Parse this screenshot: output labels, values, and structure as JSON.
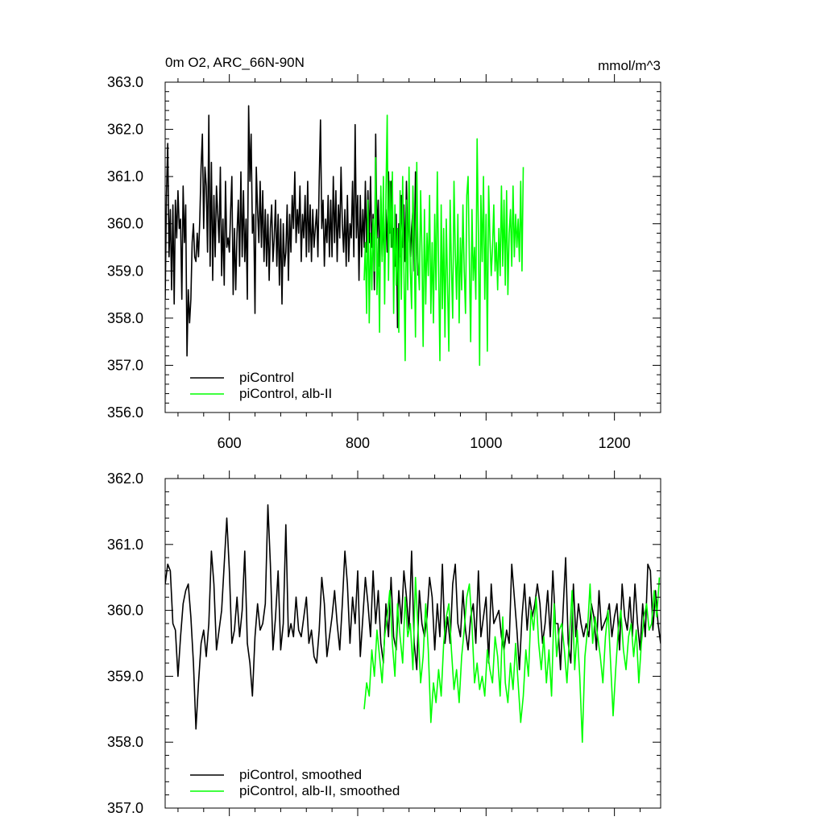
{
  "chart_data": [
    {
      "type": "line",
      "title": "0m O2, ARC_66N-90N",
      "units": "mmol/m^3",
      "xlabel": "",
      "ylabel": "",
      "xlim": [
        500,
        1272
      ],
      "ylim": [
        356.0,
        363.0
      ],
      "x_ticks": [
        600,
        800,
        1000,
        1200
      ],
      "x_tick_labels": [
        "600",
        "800",
        "1000",
        "1200"
      ],
      "y_ticks": [
        356.0,
        357.0,
        358.0,
        359.0,
        360.0,
        361.0,
        362.0,
        363.0
      ],
      "y_tick_labels": [
        "356.0",
        "357.0",
        "358.0",
        "359.0",
        "360.0",
        "361.0",
        "362.0",
        "363.0"
      ],
      "grid": false,
      "legend_position": "bottom-left",
      "series": [
        {
          "name": "piControl",
          "color": "#000000",
          "x_start": 500,
          "x_step": 2,
          "values": [
            358.4,
            360.6,
            361.7,
            359.3,
            360.3,
            358.6,
            360.4,
            358.3,
            360.5,
            359.7,
            360.7,
            359.9,
            360.1,
            358.4,
            360.8,
            359.6,
            360.4,
            357.2,
            358.6,
            357.9,
            358.4,
            359.6,
            360.0,
            359.3,
            359.2,
            359.8,
            359.3,
            360.1,
            361.2,
            361.9,
            359.9,
            361.2,
            360.8,
            359.4,
            362.3,
            359.1,
            361.3,
            358.8,
            360.6,
            359.3,
            360.8,
            360.2,
            359.6,
            361.2,
            358.9,
            360.1,
            358.7,
            360.9,
            359.5,
            359.7,
            359.4,
            360.3,
            361.0,
            358.5,
            359.9,
            358.6,
            359.8,
            360.5,
            359.1,
            361.1,
            359.3,
            360.7,
            359.2,
            360.1,
            358.4,
            362.5,
            360.9,
            361.9,
            359.8,
            360.2,
            358.1,
            361.2,
            360.3,
            359.6,
            360.9,
            359.5,
            360.7,
            359.2,
            360.3,
            359.1,
            360.2,
            358.8,
            359.9,
            360.4,
            359.2,
            359.7,
            360.5,
            359.1,
            360.2,
            358.7,
            360.1,
            358.3,
            360.0,
            359.1,
            359.4,
            360.4,
            358.8,
            360.2,
            359.4,
            360.6,
            359.9,
            361.1,
            359.6,
            360.3,
            359.8,
            360.8,
            359.2,
            360.2,
            359.7,
            360.6,
            359.3,
            360.9,
            359.4,
            360.4,
            359.2,
            360.3,
            359.5,
            359.9,
            360.3,
            359.3,
            360.9,
            362.2,
            359.9,
            360.5,
            359.1,
            360.1,
            359.6,
            360.6,
            359.3,
            360.5,
            359.3,
            361.0,
            359.6,
            360.7,
            359.2,
            360.4,
            359.7,
            361.2,
            360.0,
            359.4,
            360.3,
            359.1,
            360.6,
            359.2,
            360.0,
            359.7,
            360.9,
            359.3,
            362.1,
            359.7,
            360.6,
            358.8,
            360.6,
            359.3,
            360.3,
            359.5,
            360.9,
            359.4,
            360.7,
            359.6,
            361.0,
            359.5,
            360.2,
            358.6,
            361.9,
            359.7,
            360.5,
            359.1,
            360.6,
            359.3,
            360.2,
            358.9,
            360.3,
            359.4,
            361.1,
            359.8,
            360.9,
            359.5,
            359.9,
            359.1,
            360.2,
            357.8,
            360.0,
            359.3,
            360.6,
            359.5,
            360.4,
            359.2,
            360.9,
            359.6,
            360.2,
            359.3,
            359.9,
            360.3,
            359.0,
            361.1,
            360.2,
            358.9
          ]
        },
        {
          "name": "piControl, alb-II",
          "color": "#00ff00",
          "x_start": 810,
          "x_step": 2,
          "values": [
            358.8,
            359.6,
            358.1,
            360.5,
            357.9,
            359.8,
            358.6,
            360.1,
            359.0,
            361.4,
            358.5,
            359.7,
            357.7,
            360.8,
            359.2,
            361.0,
            358.3,
            360.6,
            362.3,
            358.8,
            360.9,
            359.5,
            361.1,
            358.1,
            360.4,
            358.7,
            359.9,
            357.7,
            360.7,
            358.4,
            361.0,
            359.1,
            357.1,
            360.5,
            358.6,
            361.2,
            359.0,
            358.2,
            360.8,
            359.6,
            357.6,
            361.3,
            359.2,
            358.6,
            360.7,
            359.4,
            357.4,
            360.3,
            358.3,
            359.8,
            358.9,
            360.6,
            358.1,
            359.6,
            357.9,
            360.2,
            358.6,
            361.1,
            359.1,
            357.1,
            360.4,
            358.2,
            359.9,
            357.6,
            360.1,
            358.7,
            357.3,
            360.5,
            359.1,
            358.0,
            360.9,
            359.4,
            358.4,
            360.2,
            357.9,
            359.7,
            358.6,
            360.4,
            359.0,
            358.1,
            360.6,
            361.0,
            359.2,
            357.5,
            360.3,
            358.8,
            359.5,
            358.4,
            361.8,
            359.8,
            357.0,
            360.6,
            359.2,
            361.0,
            358.4,
            360.2,
            357.3,
            360.8,
            359.7,
            358.9,
            359.5,
            360.4,
            359.0,
            359.6,
            358.6,
            359.9,
            358.9,
            360.8,
            359.1,
            360.5,
            358.7,
            360.7,
            358.5,
            359.8,
            360.3,
            359.1,
            360.8,
            359.3,
            360.2,
            359.5,
            360.1,
            359.2,
            360.9,
            359.0,
            361.2
          ]
        }
      ],
      "legend": [
        {
          "label": "piControl",
          "color": "#000000"
        },
        {
          "label": "piControl, alb-II",
          "color": "#00ff00"
        }
      ]
    },
    {
      "type": "line",
      "title": "",
      "xlabel": "",
      "ylabel": "",
      "xlim": [
        500,
        1272
      ],
      "ylim": [
        357.0,
        362.0
      ],
      "x_ticks": [
        600,
        800,
        1000,
        1200
      ],
      "x_tick_labels": [],
      "y_ticks": [
        357.0,
        358.0,
        359.0,
        360.0,
        361.0,
        362.0
      ],
      "y_tick_labels": [
        "357.0",
        "358.0",
        "359.0",
        "360.0",
        "361.0",
        "362.0"
      ],
      "grid": false,
      "legend_position": "bottom-left",
      "series": [
        {
          "name": "piControl, smoothed",
          "color": "#000000",
          "x_start": 500,
          "x_step": 4,
          "values": [
            360.4,
            360.7,
            360.6,
            359.8,
            359.7,
            359.0,
            359.6,
            360.1,
            360.3,
            360.4,
            359.9,
            359.2,
            358.2,
            358.9,
            359.5,
            359.7,
            359.3,
            359.8,
            360.9,
            360.4,
            359.4,
            359.7,
            360.0,
            360.7,
            361.4,
            360.6,
            359.5,
            359.7,
            360.2,
            359.6,
            360.0,
            360.9,
            359.5,
            359.2,
            358.7,
            359.6,
            360.1,
            359.7,
            359.8,
            360.1,
            361.6,
            360.7,
            359.4,
            359.9,
            360.6,
            359.4,
            359.8,
            361.3,
            359.6,
            359.8,
            359.6,
            360.2,
            359.7,
            359.6,
            359.9,
            360.2,
            359.5,
            359.7,
            359.3,
            359.2,
            359.7,
            360.5,
            360.1,
            359.3,
            359.6,
            359.9,
            360.3,
            359.8,
            359.4,
            360.1,
            360.9,
            360.4,
            359.5,
            360.2,
            359.8,
            360.6,
            359.3,
            359.9,
            360.5,
            360.1,
            359.6,
            360.6,
            359.8,
            360.3,
            359.5,
            359.2,
            360.1,
            359.6,
            360.5,
            359.6,
            359.4,
            360.3,
            359.8,
            360.6,
            360.2,
            359.7,
            360.9,
            359.5,
            359.1,
            360.3,
            359.8,
            359.6,
            359.9,
            360.5,
            360.2,
            359.4,
            360.1,
            359.6,
            360.7,
            359.5,
            359.9,
            359.5,
            360.4,
            360.7,
            359.8,
            359.6,
            360.3,
            359.7,
            359.4,
            359.9,
            360.1,
            359.5,
            360.6,
            359.6,
            359.9,
            360.2,
            359.2,
            360.4,
            359.8,
            359.9,
            360.0,
            359.6,
            359.4,
            359.7,
            359.5,
            360.7,
            360.2,
            359.7,
            359.1,
            359.9,
            360.4,
            359.7,
            360.2,
            359.9,
            360.1,
            360.4,
            360.1,
            359.5,
            359.8,
            360.3,
            359.6,
            360.6,
            359.8,
            359.8,
            359.1,
            360.0,
            360.8,
            359.5,
            359.2,
            360.4,
            359.6,
            360.1,
            359.8,
            359.6,
            359.8,
            359.6,
            360.1,
            359.9,
            359.4,
            360.3,
            359.7,
            359.8,
            359.9,
            360.1,
            359.6,
            359.9,
            360.1,
            359.4,
            360.4,
            359.9,
            359.7,
            360.2,
            359.6,
            360.4,
            359.8,
            359.4,
            360.1,
            359.6,
            360.7,
            360.6,
            359.7,
            360.3,
            359.8,
            359.5,
            360.2,
            359.6,
            360.0,
            360.3,
            360.8,
            360.0,
            359.6,
            359.7
          ]
        },
        {
          "name": "piControl, alb-II, smoothed",
          "color": "#00ff00",
          "x_start": 810,
          "x_step": 4,
          "values": [
            358.5,
            358.9,
            358.7,
            359.4,
            359.0,
            359.7,
            359.3,
            358.9,
            359.6,
            359.9,
            360.3,
            359.5,
            359.0,
            360.1,
            359.6,
            359.2,
            360.2,
            359.6,
            359.8,
            359.1,
            360.5,
            359.7,
            358.9,
            359.3,
            360.1,
            359.4,
            358.3,
            358.9,
            358.6,
            359.1,
            358.7,
            359.5,
            359.9,
            360.1,
            359.4,
            358.8,
            359.1,
            358.6,
            359.3,
            359.7,
            360.2,
            360.4,
            359.8,
            358.9,
            359.2,
            358.8,
            359.0,
            358.7,
            359.4,
            359.1,
            358.9,
            359.6,
            359.3,
            358.7,
            359.9,
            358.9,
            358.6,
            359.2,
            358.8,
            359.5,
            358.9,
            358.3,
            358.7,
            359.4,
            359.0,
            360.0,
            359.7,
            360.2,
            359.5,
            359.1,
            359.6,
            358.9,
            359.4,
            358.7,
            360.1,
            359.3,
            359.7,
            359.8,
            359.4,
            358.9,
            359.6,
            360.3,
            359.1,
            359.7,
            359.0,
            358.0,
            359.3,
            359.7,
            360.4,
            359.5,
            359.9,
            359.6,
            359.3,
            358.9,
            359.6,
            360.0,
            359.2,
            358.4,
            359.1,
            359.7,
            360.0,
            359.4,
            359.1,
            359.6,
            359.8,
            359.3,
            359.7,
            358.9,
            359.5,
            359.9,
            360.1,
            359.7,
            359.8,
            360.3,
            359.9,
            360.5
          ]
        }
      ],
      "legend": [
        {
          "label": "piControl, smoothed",
          "color": "#000000"
        },
        {
          "label": "piControl, alb-II, smoothed",
          "color": "#00ff00"
        }
      ]
    }
  ]
}
